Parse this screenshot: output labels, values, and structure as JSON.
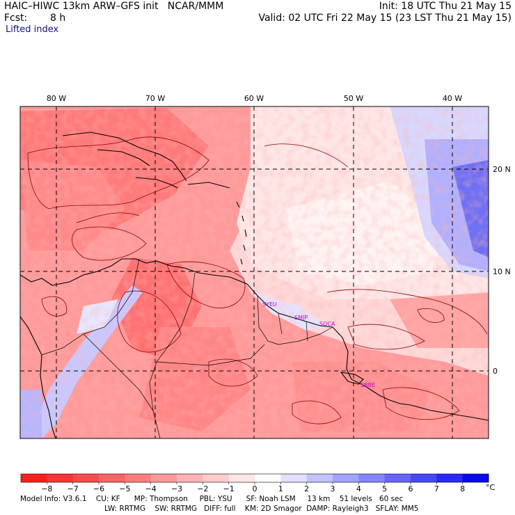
{
  "header": {
    "title_left": "HAIC–HIWC 13km ARW–GFS init   NCAR/MMM",
    "init": "Init: 18 UTC Thu 21 May 15",
    "fcst_label": "Fcst:",
    "fcst_value": "8 h",
    "valid": "Valid: 02 UTC Fri 22 May 15 (23 LST Thu 21 May 15)",
    "field": "Lifted index"
  },
  "map": {
    "lon_labels": [
      "80 W",
      "70 W",
      "60 W",
      "50 W",
      "40 W"
    ],
    "lat_labels": [
      "20 N",
      "10 N",
      "0"
    ],
    "stations": [
      "SYEU",
      "SMJP",
      "SOCA",
      "SBBE"
    ],
    "frame_color": "#000000",
    "coast_color": "#000000",
    "contour_color": "#8a0000"
  },
  "colorbar": {
    "labels": [
      "−8",
      "−7",
      "−6",
      "−5",
      "−4",
      "−3",
      "−2",
      "−1",
      "0",
      "1",
      "2",
      "3",
      "4",
      "5",
      "6",
      "7",
      "8"
    ],
    "unit": "°C",
    "colors": [
      "#ff1e1e",
      "#ff3333",
      "#ff4a4a",
      "#ff6464",
      "#ff7d7d",
      "#ff9999",
      "#ffb3b3",
      "#ffcccc",
      "#ffe6e6",
      "#ffffff",
      "#e0e0ff",
      "#c2c2ff",
      "#a3a3ff",
      "#8585ff",
      "#6666ff",
      "#4747ff",
      "#2929ff",
      "#0a0aee"
    ]
  },
  "footer": {
    "line1": "Model Info: V3.6.1    CU: KF      MP: Thompson     PBL: YSU      SF: Noah LSM     13 km    51 levels   60 sec",
    "line2": "LW: RRTMG    SW: RRTMG   DIFF: full    KM: 2D Smagor  DAMP: Rayleigh3   SFLAY: MM5"
  }
}
